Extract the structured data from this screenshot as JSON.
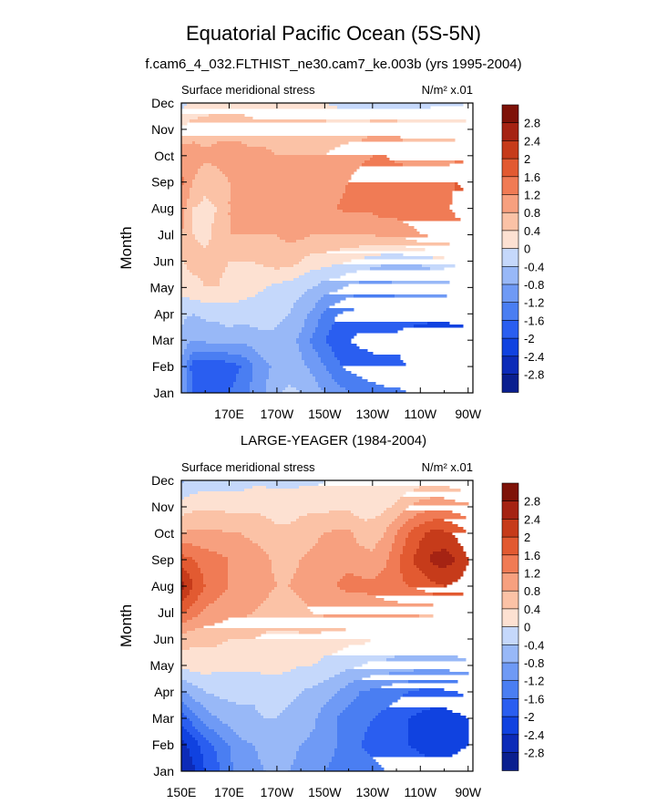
{
  "title": "Equatorial Pacific Ocean (5S-5N)",
  "subtitle": "f.cam6_4_032.FLTHIST_ne30.cam7_ke.003b (yrs 1995-2004)",
  "panel2_title": "LARGE-YEAGER (1984-2004)",
  "chart_data": [
    {
      "type": "heatmap",
      "panel": "top",
      "variable_label": "Surface meridional stress",
      "units_label": "N/m² x.01",
      "xlabel": "",
      "ylabel": "Month",
      "x_ticks": [
        "170E",
        "170W",
        "150W",
        "130W",
        "110W",
        "90W"
      ],
      "x_tick_values": [
        170,
        190,
        210,
        230,
        250,
        270
      ],
      "xlim": [
        150,
        272
      ],
      "y_ticks": [
        "Jan",
        "Feb",
        "Mar",
        "Apr",
        "May",
        "Jun",
        "Jul",
        "Aug",
        "Sep",
        "Oct",
        "Nov",
        "Dec"
      ],
      "x": [
        150,
        155,
        160,
        165,
        170,
        175,
        180,
        185,
        190,
        195,
        200,
        205,
        210,
        215,
        220,
        225,
        230,
        235,
        240,
        245,
        250,
        255,
        260,
        265,
        270
      ],
      "values": [
        [
          -0.8,
          -1.7,
          -1.8,
          -1.8,
          -1.6,
          -1.4,
          -1.1,
          -0.8,
          -0.5,
          -0.3,
          -0.4,
          -0.6,
          -0.8,
          -1.0,
          -1.2,
          -1.3,
          -1.4,
          -1.5,
          -1.5,
          -1.6,
          -1.6,
          -1.6,
          -1.7,
          -1.7,
          -1.6
        ],
        [
          -0.9,
          -1.8,
          -1.9,
          -1.9,
          -1.8,
          -1.6,
          -1.2,
          -0.9,
          -0.7,
          -0.6,
          -0.7,
          -0.9,
          -1.2,
          -1.5,
          -1.7,
          -1.8,
          -1.9,
          -1.9,
          -1.9,
          -2.0,
          -2.0,
          -2.0,
          -2.0,
          -2.0,
          -2.0
        ],
        [
          -0.5,
          -0.8,
          -0.7,
          -0.6,
          -0.6,
          -0.7,
          -0.6,
          -0.5,
          -0.5,
          -0.6,
          -0.9,
          -1.3,
          -1.6,
          -1.8,
          -2.0,
          -2.1,
          -2.1,
          -2.1,
          -2.1,
          -2.2,
          -2.3,
          -2.4,
          -2.4,
          -2.3,
          -2.2
        ],
        [
          -0.3,
          -0.4,
          -0.3,
          -0.3,
          -0.2,
          -0.2,
          -0.2,
          -0.2,
          -0.3,
          -0.4,
          -0.6,
          -0.9,
          -1.3,
          -1.6,
          -1.7,
          -1.8,
          -1.8,
          -1.8,
          -1.8,
          -1.8,
          -1.8,
          -1.8,
          -1.8,
          -1.8,
          -1.8
        ],
        [
          0.2,
          0.3,
          0.4,
          0.4,
          0.3,
          0.2,
          0.1,
          0.0,
          -0.1,
          -0.2,
          -0.3,
          -0.4,
          -0.6,
          -0.7,
          -0.9,
          -1.0,
          -1.0,
          -1.0,
          -0.9,
          -0.9,
          -0.9,
          -0.9,
          -0.9,
          -1.0,
          -1.0
        ],
        [
          0.4,
          0.5,
          0.5,
          0.5,
          0.4,
          0.4,
          0.4,
          0.5,
          0.6,
          0.6,
          0.4,
          0.2,
          0.2,
          0.1,
          0.0,
          -0.1,
          -0.2,
          -0.3,
          -0.3,
          -0.3,
          -0.3,
          -0.2,
          -0.2,
          -0.3,
          -0.3
        ],
        [
          0.8,
          0.4,
          0.3,
          0.5,
          0.8,
          0.8,
          0.8,
          0.8,
          0.8,
          0.9,
          0.9,
          0.8,
          0.8,
          0.8,
          0.8,
          0.8,
          0.8,
          0.9,
          0.9,
          1.0,
          1.2,
          1.3,
          1.3,
          1.4,
          1.4
        ],
        [
          1.0,
          0.4,
          0.3,
          0.4,
          0.8,
          0.8,
          1.0,
          0.9,
          0.9,
          1.0,
          1.1,
          1.1,
          1.1,
          1.2,
          1.3,
          1.3,
          1.3,
          1.4,
          1.4,
          1.5,
          1.5,
          1.5,
          1.5,
          1.7,
          1.8
        ],
        [
          1.3,
          0.8,
          0.5,
          0.7,
          0.8,
          0.8,
          0.8,
          0.8,
          0.9,
          0.8,
          0.8,
          0.9,
          1.0,
          1.1,
          1.2,
          1.4,
          1.4,
          1.5,
          1.5,
          1.5,
          1.5,
          1.5,
          1.5,
          1.6,
          1.5
        ],
        [
          1.0,
          1.0,
          0.9,
          0.9,
          0.9,
          0.9,
          0.9,
          0.9,
          0.8,
          0.8,
          0.8,
          0.8,
          0.8,
          0.9,
          1.0,
          1.1,
          1.2,
          1.2,
          1.1,
          1.0,
          1.0,
          1.0,
          1.0,
          1.1,
          1.1
        ],
        [
          0.5,
          0.6,
          0.6,
          0.7,
          0.7,
          0.7,
          0.6,
          0.6,
          0.6,
          0.6,
          0.6,
          0.6,
          0.6,
          0.6,
          0.6,
          0.6,
          0.7,
          0.7,
          0.7,
          0.6,
          0.6,
          0.6,
          0.6,
          0.6,
          0.6
        ],
        [
          -0.2,
          0.1,
          0.2,
          0.2,
          0.2,
          0.2,
          0.1,
          0.0,
          0.0,
          0.0,
          0.0,
          0.0,
          0.0,
          -0.1,
          -0.2,
          -0.2,
          -0.2,
          -0.2,
          -0.2,
          -0.2,
          -0.2,
          -0.1,
          -0.1,
          -0.1,
          0.0
        ]
      ],
      "colorbar": {
        "labels": [
          "2.8",
          "2.4",
          "2",
          "1.6",
          "1.2",
          "0.8",
          "0.4",
          "0",
          "-0.4",
          "-0.8",
          "-1.2",
          "-1.6",
          "-2",
          "-2.4",
          "-2.8"
        ],
        "levels": [
          -2.8,
          -2.4,
          -2.0,
          -1.6,
          -1.2,
          -0.8,
          -0.4,
          0,
          0.4,
          0.8,
          1.2,
          1.6,
          2.0,
          2.4,
          2.8
        ],
        "colors": [
          "#0a1f8f",
          "#0c2bb8",
          "#1042e0",
          "#2a5ef0",
          "#4a7ef2",
          "#6f9af5",
          "#98b8f7",
          "#c5d8fb",
          "#fde1d2",
          "#fbc2a6",
          "#f7a07f",
          "#f07b55",
          "#e25a31",
          "#c63b1a",
          "#a52313",
          "#7e1208"
        ]
      }
    },
    {
      "type": "heatmap",
      "panel": "bottom",
      "variable_label": "Surface meridional stress",
      "units_label": "N/m² x.01",
      "xlabel": "",
      "ylabel": "Month",
      "x_ticks": [
        "150E",
        "170E",
        "170W",
        "150W",
        "130W",
        "110W",
        "90W"
      ],
      "x_tick_values": [
        150,
        170,
        190,
        210,
        230,
        250,
        270
      ],
      "xlim": [
        150,
        272
      ],
      "y_ticks": [
        "Jan",
        "Feb",
        "Mar",
        "Apr",
        "May",
        "Jun",
        "Jul",
        "Aug",
        "Sep",
        "Oct",
        "Nov",
        "Dec"
      ],
      "x": [
        150,
        155,
        160,
        165,
        170,
        175,
        180,
        185,
        190,
        195,
        200,
        205,
        210,
        215,
        220,
        225,
        230,
        235,
        240,
        245,
        250,
        255,
        260,
        265,
        270
      ],
      "values": [
        [
          -2.8,
          -2.5,
          -2.0,
          -1.7,
          -1.3,
          -1.0,
          -0.9,
          -0.8,
          -0.7,
          -0.8,
          -0.9,
          -1.0,
          -1.2,
          -1.3,
          -1.4,
          -1.4,
          -1.5,
          -1.6,
          -1.7,
          -1.7,
          -1.8,
          -1.8,
          -1.8,
          -1.8,
          -1.7
        ],
        [
          -2.6,
          -2.2,
          -1.8,
          -1.5,
          -1.2,
          -0.9,
          -0.8,
          -0.7,
          -0.6,
          -0.7,
          -0.8,
          -0.9,
          -1.0,
          -1.2,
          -1.4,
          -1.6,
          -1.7,
          -1.8,
          -1.9,
          -2.0,
          -2.1,
          -2.2,
          -2.2,
          -2.1,
          -2.0
        ],
        [
          -1.8,
          -1.4,
          -1.0,
          -0.8,
          -0.6,
          -0.5,
          -0.5,
          -0.4,
          -0.4,
          -0.5,
          -0.6,
          -0.7,
          -1.0,
          -1.2,
          -1.4,
          -1.5,
          -1.6,
          -1.7,
          -1.8,
          -2.0,
          -2.1,
          -2.2,
          -2.2,
          -2.1,
          -2.0
        ],
        [
          -0.9,
          -0.6,
          -0.4,
          -0.3,
          -0.3,
          -0.3,
          -0.3,
          -0.2,
          -0.2,
          -0.3,
          -0.4,
          -0.5,
          -0.6,
          -0.8,
          -1.0,
          -1.2,
          -1.3,
          -1.4,
          -1.5,
          -1.6,
          -1.7,
          -1.7,
          -1.7,
          -1.6,
          -1.5
        ],
        [
          0.1,
          0.2,
          0.2,
          0.1,
          0.1,
          0.1,
          0.1,
          0.1,
          0.1,
          0.1,
          0.0,
          0.0,
          -0.1,
          -0.2,
          -0.3,
          -0.4,
          -0.5,
          -0.5,
          -0.6,
          -0.6,
          -0.6,
          -0.6,
          -0.6,
          -0.6,
          -0.5
        ],
        [
          0.6,
          0.5,
          0.5,
          0.5,
          0.4,
          0.4,
          0.4,
          0.3,
          0.3,
          0.3,
          0.3,
          0.3,
          0.2,
          0.2,
          0.1,
          0.1,
          0.0,
          0.0,
          0.0,
          0.0,
          0.0,
          0.0,
          0.0,
          0.0,
          0.0
        ],
        [
          1.6,
          1.4,
          1.1,
          1.0,
          0.9,
          0.9,
          0.8,
          0.7,
          0.6,
          0.6,
          0.7,
          0.8,
          0.9,
          0.9,
          0.9,
          0.9,
          1.0,
          1.0,
          1.0,
          1.0,
          0.9,
          0.9,
          1.0,
          1.0,
          1.0
        ],
        [
          2.6,
          2.0,
          1.6,
          1.4,
          1.2,
          1.1,
          1.0,
          0.9,
          0.8,
          0.8,
          0.9,
          1.0,
          1.1,
          1.2,
          1.3,
          1.3,
          1.3,
          1.4,
          1.5,
          1.6,
          1.7,
          1.9,
          2.0,
          1.9,
          1.8
        ],
        [
          1.8,
          1.6,
          1.4,
          1.3,
          1.2,
          1.1,
          1.0,
          0.9,
          0.7,
          0.7,
          0.8,
          0.9,
          1.0,
          1.1,
          1.1,
          1.0,
          0.9,
          1.1,
          1.5,
          1.9,
          2.2,
          2.5,
          2.6,
          2.4,
          2.0
        ],
        [
          0.8,
          0.9,
          0.9,
          0.9,
          0.8,
          0.8,
          0.7,
          0.6,
          0.5,
          0.5,
          0.6,
          0.7,
          0.8,
          0.9,
          0.9,
          0.6,
          0.6,
          0.8,
          1.2,
          1.6,
          1.9,
          2.1,
          2.1,
          1.9,
          1.6
        ],
        [
          0.2,
          0.3,
          0.3,
          0.3,
          0.3,
          0.3,
          0.3,
          0.3,
          0.2,
          0.2,
          0.3,
          0.3,
          0.3,
          0.3,
          0.3,
          0.2,
          0.2,
          0.3,
          0.5,
          0.8,
          1.0,
          1.1,
          1.1,
          1.0,
          0.9
        ],
        [
          -0.5,
          -0.3,
          -0.2,
          -0.2,
          -0.2,
          -0.2,
          -0.1,
          -0.1,
          -0.1,
          -0.1,
          -0.1,
          -0.1,
          0.0,
          0.1,
          0.2,
          0.1,
          0.1,
          0.0,
          0.0,
          0.1,
          0.2,
          0.2,
          0.2,
          0.1,
          0.0
        ]
      ],
      "colorbar": {
        "labels": [
          "2.8",
          "2.4",
          "2",
          "1.6",
          "1.2",
          "0.8",
          "0.4",
          "0",
          "-0.4",
          "-0.8",
          "-1.2",
          "-1.6",
          "-2",
          "-2.4",
          "-2.8"
        ],
        "levels": [
          -2.8,
          -2.4,
          -2.0,
          -1.6,
          -1.2,
          -0.8,
          -0.4,
          0,
          0.4,
          0.8,
          1.2,
          1.6,
          2.0,
          2.4,
          2.8
        ],
        "colors": [
          "#0a1f8f",
          "#0c2bb8",
          "#1042e0",
          "#2a5ef0",
          "#4a7ef2",
          "#6f9af5",
          "#98b8f7",
          "#c5d8fb",
          "#fde1d2",
          "#fbc2a6",
          "#f7a07f",
          "#f07b55",
          "#e25a31",
          "#c63b1a",
          "#a52313",
          "#7e1208"
        ]
      }
    }
  ]
}
